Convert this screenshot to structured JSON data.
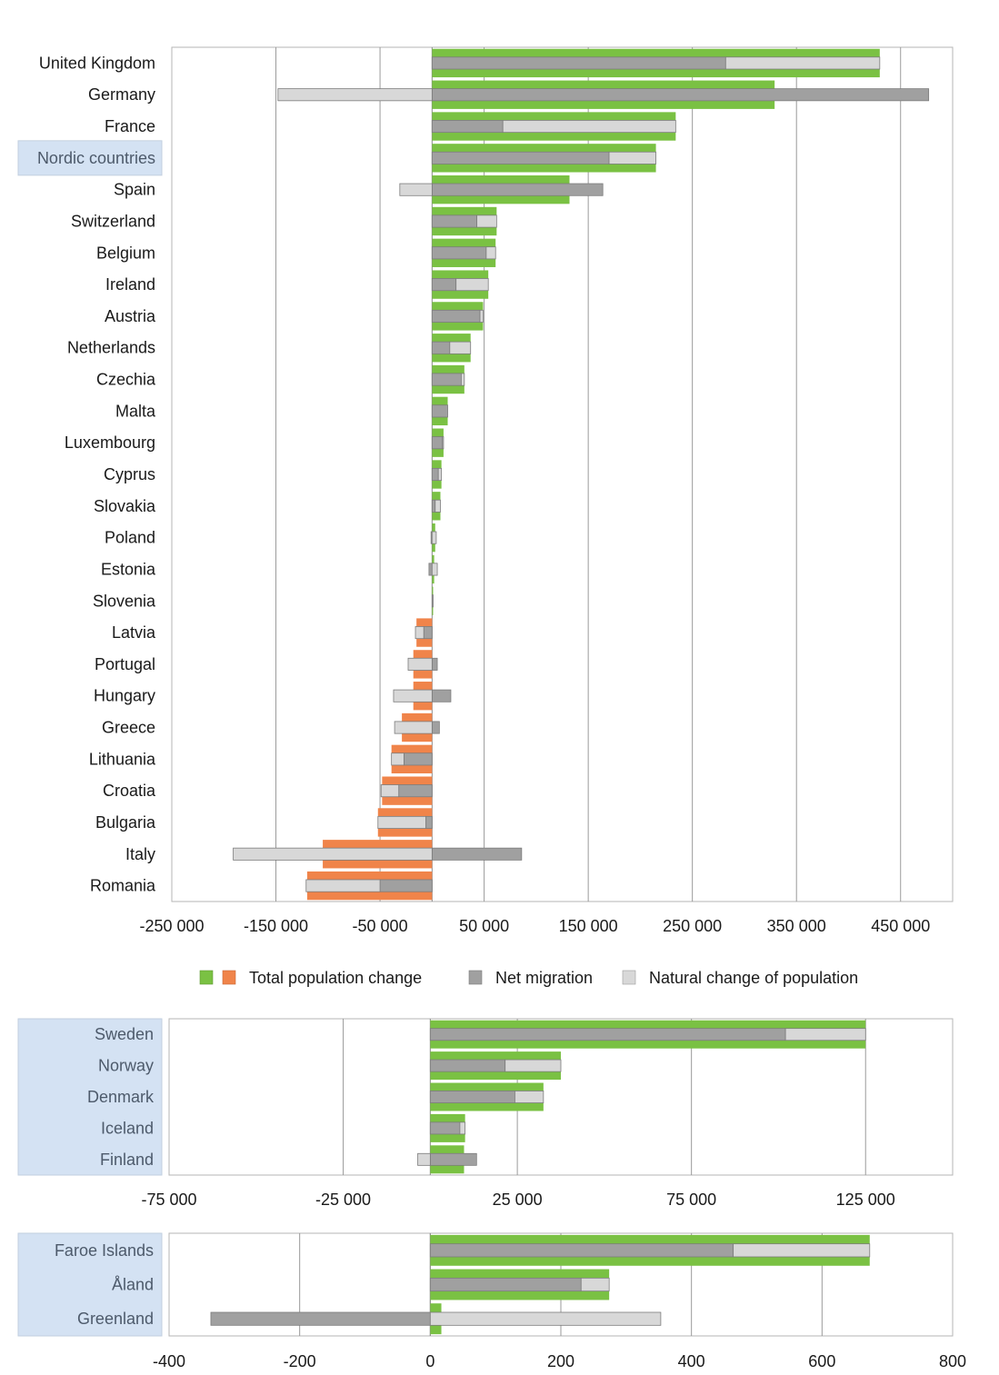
{
  "colors": {
    "positive_total": "#7ac143",
    "negative_total": "#f0844a",
    "net_migration": "#a0a0a0",
    "natural_change": "#d8d8d8",
    "nordic_highlight": "#d4e2f3",
    "grid": "#9a9a9a",
    "frame": "#b5b5b5"
  },
  "legend": {
    "total": "Total population change",
    "net": "Net migration",
    "natural": "Natural change of population"
  },
  "chart_data": [
    {
      "type": "bar",
      "orientation": "horizontal",
      "stacked_inner": true,
      "categories": [
        "United Kingdom",
        "Germany",
        "France",
        "Nordic countries",
        "Spain",
        "Switzerland",
        "Belgium",
        "Ireland",
        "Austria",
        "Netherlands",
        "Czechia",
        "Malta",
        "Luxembourg",
        "Cyprus",
        "Slovakia",
        "Poland",
        "Estonia",
        "Slovenia",
        "Latvia",
        "Portugal",
        "Hungary",
        "Greece",
        "Lithuania",
        "Croatia",
        "Bulgaria",
        "Italy",
        "Romania"
      ],
      "highlighted": [
        "Nordic countries"
      ],
      "series": [
        {
          "name": "Total population change",
          "values": [
            430000,
            329000,
            234000,
            215000,
            132000,
            62000,
            61000,
            54000,
            49000,
            37000,
            31000,
            15000,
            11000,
            9000,
            8000,
            3000,
            2000,
            1000,
            -15000,
            -18000,
            -18000,
            -29000,
            -39000,
            -48000,
            -52000,
            -105000,
            -120000
          ]
        },
        {
          "name": "Net migration",
          "values": [
            282000,
            477000,
            68000,
            170000,
            164000,
            43000,
            52000,
            23000,
            46000,
            17000,
            28000,
            15000,
            10000,
            6000,
            3000,
            -1000,
            -3000,
            1000,
            -8000,
            5000,
            18000,
            7000,
            -27000,
            -32000,
            -6000,
            86000,
            -50000
          ]
        },
        {
          "name": "Natural change of population",
          "values": [
            148000,
            -148000,
            166000,
            45000,
            -31000,
            19000,
            9000,
            31000,
            3000,
            20000,
            3000,
            0,
            1000,
            3000,
            5000,
            4000,
            5000,
            0,
            -8000,
            -23000,
            -37000,
            -36000,
            -12000,
            -17000,
            -46000,
            -191000,
            -71000
          ]
        }
      ],
      "xlim": [
        -250000,
        500000
      ],
      "ticks": [
        -250000,
        -150000,
        -50000,
        50000,
        150000,
        250000,
        350000,
        450000
      ],
      "tick_labels": [
        "-250 000",
        "-150 000",
        "-50 000",
        "50 000",
        "150 000",
        "250 000",
        "350 000",
        "450 000"
      ],
      "grid": true
    },
    {
      "type": "bar",
      "orientation": "horizontal",
      "stacked_inner": true,
      "categories": [
        "Sweden",
        "Norway",
        "Denmark",
        "Iceland",
        "Finland"
      ],
      "highlighted": [
        "Sweden",
        "Norway",
        "Denmark",
        "Iceland",
        "Finland"
      ],
      "series": [
        {
          "name": "Total population change",
          "values": [
            125000,
            37500,
            32500,
            10000,
            9700
          ]
        },
        {
          "name": "Net migration",
          "values": [
            102000,
            21500,
            24300,
            8500,
            13300
          ]
        },
        {
          "name": "Natural change of population",
          "values": [
            23000,
            16000,
            8200,
            1500,
            -3600
          ]
        }
      ],
      "xlim": [
        -75000,
        150000
      ],
      "ticks": [
        -75000,
        -25000,
        25000,
        75000,
        125000
      ],
      "tick_labels": [
        "-75 000",
        "-25 000",
        "25 000",
        "75 000",
        "125 000"
      ],
      "grid": true
    },
    {
      "type": "bar",
      "orientation": "horizontal",
      "stacked_inner": true,
      "categories": [
        "Faroe Islands",
        "Åland",
        "Greenland"
      ],
      "highlighted": [
        "Faroe Islands",
        "Åland",
        "Greenland"
      ],
      "series": [
        {
          "name": "Total population change",
          "values": [
            673,
            274,
            17
          ]
        },
        {
          "name": "Net migration",
          "values": [
            464,
            231,
            -336
          ]
        },
        {
          "name": "Natural change of population",
          "values": [
            209,
            43,
            353
          ]
        }
      ],
      "xlim": [
        -400,
        800
      ],
      "ticks": [
        -400,
        -200,
        0,
        200,
        400,
        600,
        800
      ],
      "tick_labels": [
        "-400",
        "-200",
        "0",
        "200",
        "400",
        "600",
        "800"
      ],
      "grid": true
    }
  ]
}
